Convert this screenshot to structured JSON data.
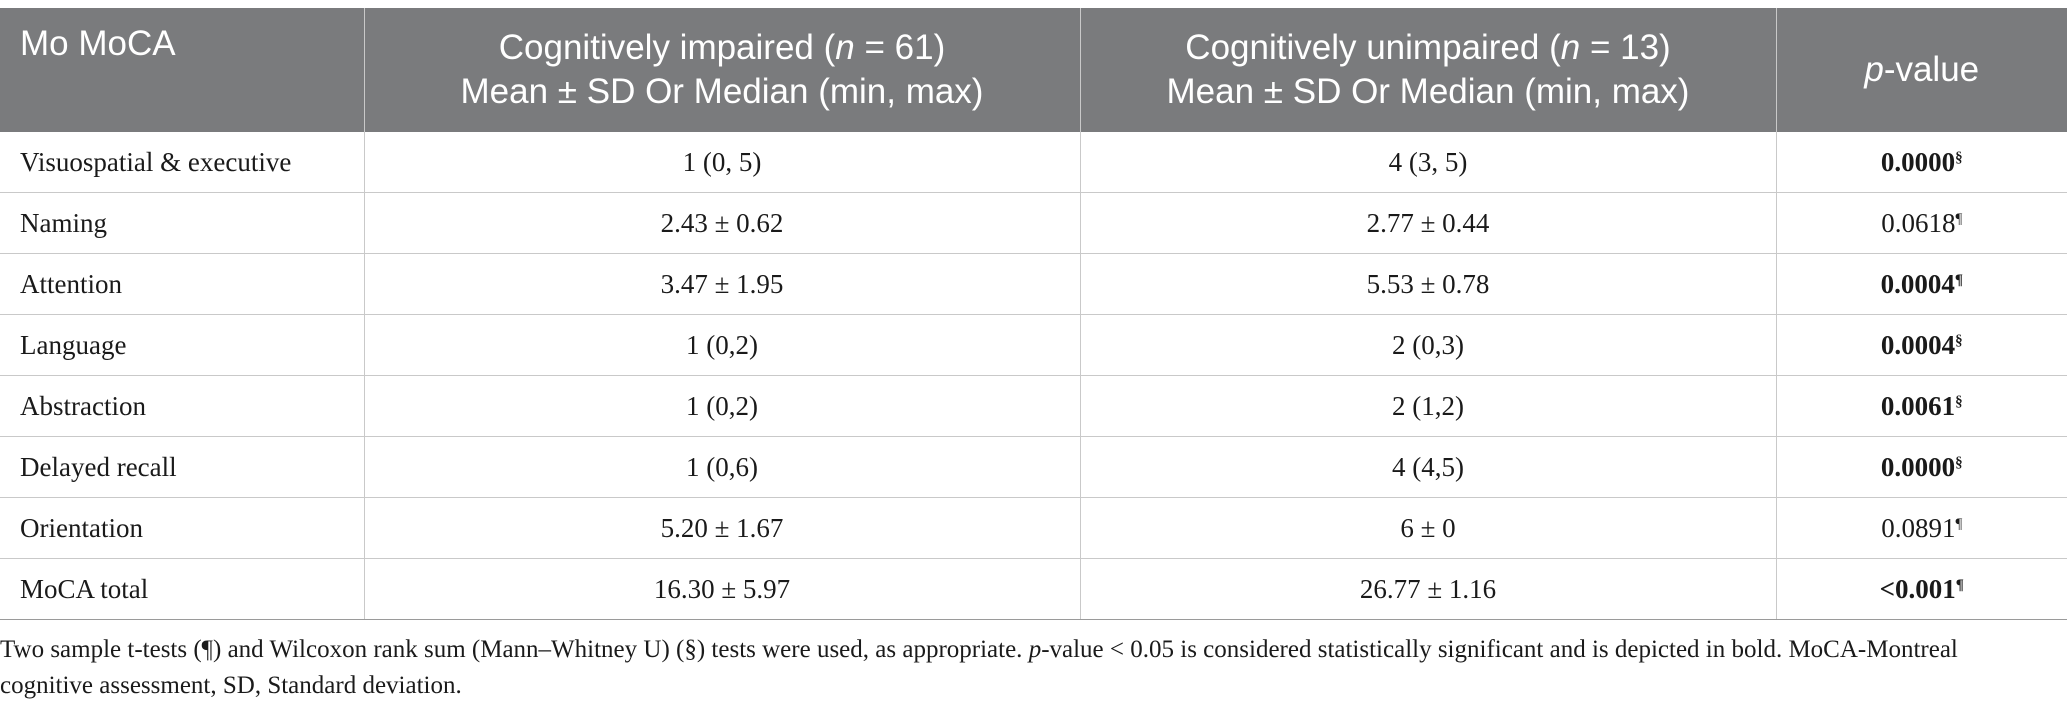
{
  "header": {
    "col1": "Mo MoCA",
    "col2_line1_pre": "Cognitively impaired (",
    "col2_n": "n",
    "col2_line1_post": " = 61)",
    "col2_line2": "Mean ± SD Or Median (min, max)",
    "col3_line1_pre": "Cognitively unimpaired (",
    "col3_n": "n",
    "col3_line1_post": " = 13)",
    "col3_line2": "Mean ± SD Or Median (min, max)",
    "col4_p": "p",
    "col4_rest": "-value"
  },
  "rows": [
    {
      "label": "Visuospatial & executive",
      "impaired": "1 (0, 5)",
      "unimpaired": "4 (3, 5)",
      "p": "0.0000",
      "mark": "§",
      "bold": true
    },
    {
      "label": "Naming",
      "impaired": "2.43 ± 0.62",
      "unimpaired": "2.77 ± 0.44",
      "p": "0.0618",
      "mark": "¶",
      "bold": false
    },
    {
      "label": "Attention",
      "impaired": "3.47 ± 1.95",
      "unimpaired": "5.53 ± 0.78",
      "p": "0.0004",
      "mark": "¶",
      "bold": true
    },
    {
      "label": "Language",
      "impaired": "1 (0,2)",
      "unimpaired": "2 (0,3)",
      "p": "0.0004",
      "mark": "§",
      "bold": true
    },
    {
      "label": "Abstraction",
      "impaired": "1 (0,2)",
      "unimpaired": "2 (1,2)",
      "p": "0.0061",
      "mark": "§",
      "bold": true
    },
    {
      "label": "Delayed recall",
      "impaired": "1 (0,6)",
      "unimpaired": "4 (4,5)",
      "p": "0.0000",
      "mark": "§",
      "bold": true
    },
    {
      "label": "Orientation",
      "impaired": "5.20 ± 1.67",
      "unimpaired": "6 ± 0",
      "p": "0.0891",
      "mark": "¶",
      "bold": false
    },
    {
      "label": "MoCA total",
      "impaired": "16.30 ± 5.97",
      "unimpaired": "26.77 ± 1.16",
      "p": "<0.001",
      "mark": "¶",
      "bold": true
    }
  ],
  "footnote": {
    "part1": "Two sample t-tests (¶) and Wilcoxon rank sum (Mann–Whitney U) (§) tests were used, as appropriate. ",
    "p": "p",
    "part2": "-value < 0.05 is considered statistically significant and is depicted in bold. MoCA-Montreal cognitive assessment, SD, Standard deviation."
  }
}
